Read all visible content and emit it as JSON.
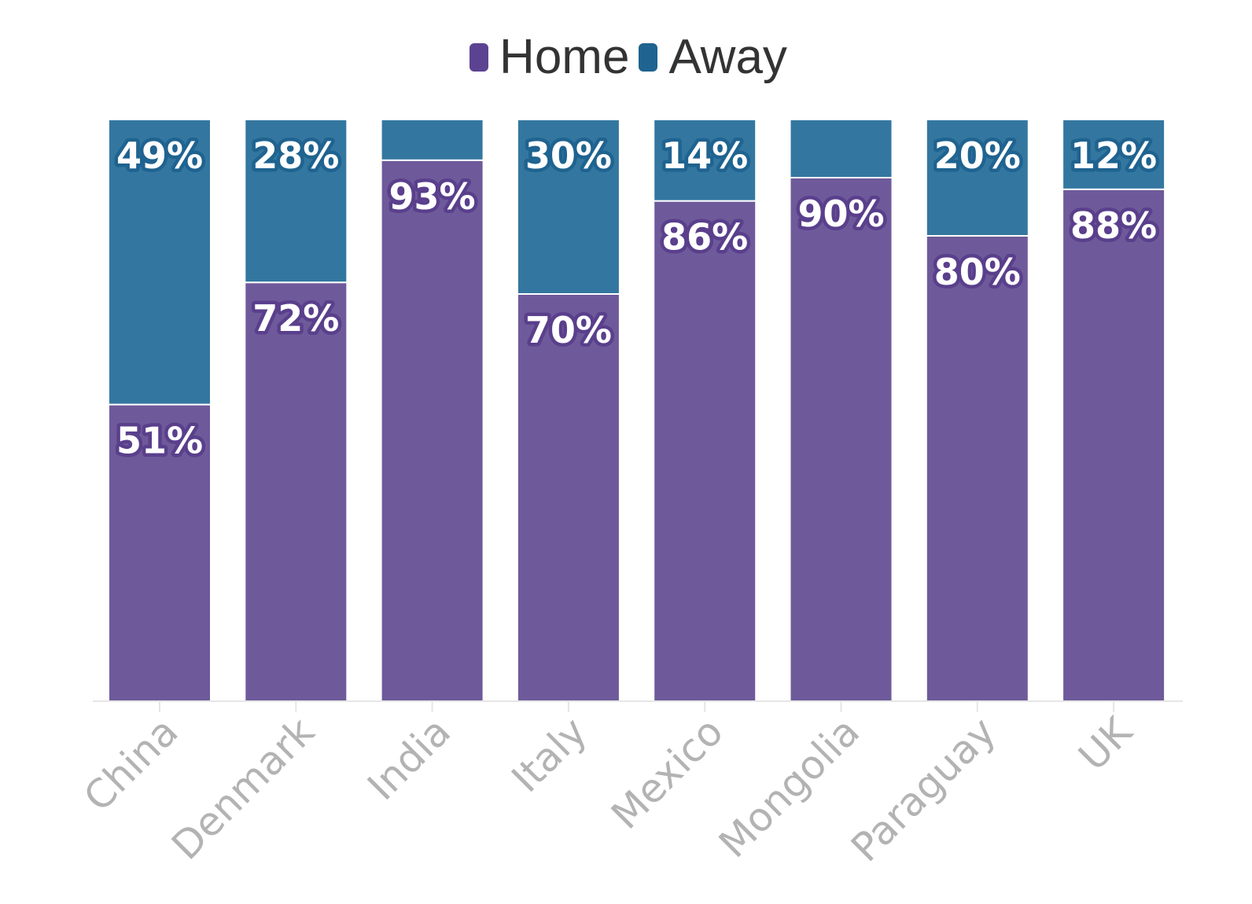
{
  "chart_data": {
    "type": "bar",
    "stacked": true,
    "categories": [
      "China",
      "Denmark",
      "India",
      "Italy",
      "Mexico",
      "Mongolia",
      "Paraguay",
      "UK"
    ],
    "series": [
      {
        "name": "Home",
        "color": "#6e5a9a",
        "label_stroke": "#5a3f8c",
        "values": [
          51,
          72,
          93,
          70,
          86,
          90,
          80,
          88
        ],
        "labels": [
          "51%",
          "72%",
          "93%",
          "70%",
          "86%",
          "90%",
          "80%",
          "88%"
        ]
      },
      {
        "name": "Away",
        "color": "#3377a0",
        "label_stroke": "#1f6390",
        "values": [
          49,
          28,
          7,
          30,
          14,
          10,
          20,
          12
        ],
        "labels": [
          "49%",
          "28%",
          "",
          "30%",
          "14%",
          "",
          "20%",
          "12%"
        ]
      }
    ],
    "ylim": [
      0,
      100
    ],
    "legend": "top-center",
    "grid": false,
    "xlabel": "",
    "ylabel": ""
  }
}
